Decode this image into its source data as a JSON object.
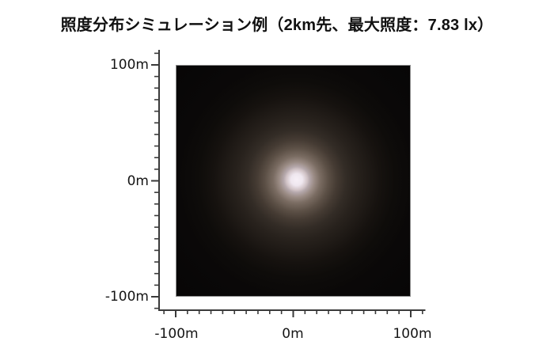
{
  "title": "照度分布シミュレーション例（2km先、最大照度：7.83 lx）",
  "axes": {
    "y_labels": [
      "100m",
      "0m",
      "-100m"
    ],
    "x_labels": [
      "-100m",
      "0m",
      "100m"
    ]
  },
  "colors": {
    "page_background": "#ffffff",
    "title_text": "#111111",
    "axis": "#3a3a3a",
    "tick_label_text": "#151515",
    "plot_border": "#8d8d8d",
    "plot_background": "#070606",
    "glow_core": "#f7f0f7"
  },
  "chart_data": {
    "type": "heatmap",
    "title": "照度分布シミュレーション例（2km先、最大照度：7.83 lx）",
    "distance_km": 2,
    "max_illuminance_lx": 7.83,
    "x_range_m": [
      -100,
      100
    ],
    "y_range_m": [
      -100,
      100
    ],
    "x_tick_labels": [
      "-100m",
      "0m",
      "100m"
    ],
    "y_tick_labels": [
      "100m",
      "0m",
      "-100m"
    ],
    "major_tick_interval_m": 100,
    "minor_tick_interval_m": 10,
    "grid": false,
    "legend": false,
    "peak_position_m": {
      "x": 0,
      "y": 0
    },
    "background_color": "#070606",
    "radial_profile": [
      {
        "radius_m": 0,
        "color": "#f7f0f7"
      },
      {
        "radius_m": 5,
        "color": "#efe7ef"
      },
      {
        "radius_m": 9,
        "color": "#cfc1c4"
      },
      {
        "radius_m": 11,
        "color": "#b5a8ac"
      },
      {
        "radius_m": 15,
        "color": "#9a8b84"
      },
      {
        "radius_m": 20,
        "color": "#7a6c62"
      },
      {
        "radius_m": 27,
        "color": "#5c5046"
      },
      {
        "radius_m": 34,
        "color": "#453b33"
      },
      {
        "radius_m": 42,
        "color": "#332c26"
      },
      {
        "radius_m": 51,
        "color": "#28221d"
      },
      {
        "radius_m": 61,
        "color": "#1f1a16"
      },
      {
        "radius_m": 71,
        "color": "#16120f"
      },
      {
        "radius_m": 84,
        "color": "#0e0c0a"
      },
      {
        "radius_m": 101,
        "color": "#0a0808"
      },
      {
        "radius_m": 142,
        "color": "#070606"
      }
    ]
  }
}
